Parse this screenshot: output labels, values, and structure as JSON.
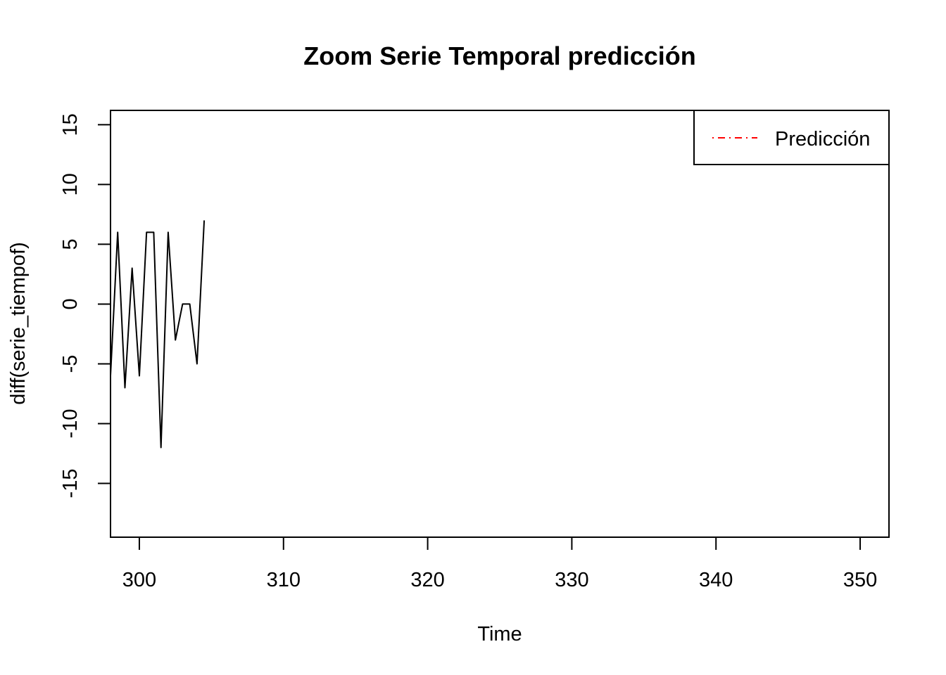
{
  "chart_data": {
    "type": "line",
    "title": "Zoom Serie Temporal predicción",
    "xlabel": "Time",
    "ylabel": "diff(serie_tiempof)",
    "xlim": [
      298,
      352
    ],
    "ylim": [
      -19.5,
      16.2
    ],
    "x_ticks": [
      300,
      310,
      320,
      330,
      340,
      350
    ],
    "y_ticks": [
      -15,
      -10,
      -5,
      0,
      5,
      10,
      15
    ],
    "grid": false,
    "legend": {
      "position": "top-right",
      "entries": [
        "Predicción"
      ]
    },
    "series": [
      {
        "color": "#000000",
        "style": "solid",
        "x": [
          298,
          298.5,
          299,
          299.5,
          300,
          300.5,
          301,
          301.5,
          302,
          302.5,
          303,
          303.5,
          304,
          304.5
        ],
        "y": [
          -6,
          6,
          -7,
          3,
          -6,
          6,
          6,
          -12,
          6,
          -3,
          0,
          0,
          -5,
          7
        ]
      },
      {
        "name": "Predicción",
        "color": "#ff0000",
        "style": "dotdash",
        "x": [],
        "y": []
      }
    ]
  }
}
